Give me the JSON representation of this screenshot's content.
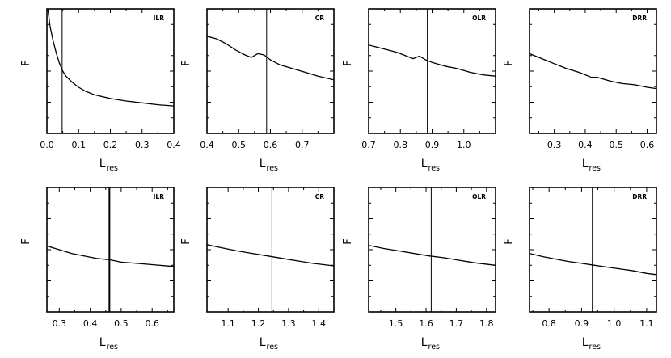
{
  "figure": {
    "background": "#ffffff",
    "line_color": "#000000"
  },
  "chart_data": [
    {
      "type": "line",
      "resonance": "ILR",
      "ylabel": "F",
      "xlabel": "L",
      "xlabel_subscript": "res",
      "xlim": [
        0.0,
        0.4
      ],
      "ylim": [
        0,
        1
      ],
      "xticks": [
        0.0,
        0.1,
        0.2,
        0.3,
        0.4
      ],
      "xtick_labels": [
        "0.0",
        "0.1",
        "0.2",
        "0.3",
        "0.4"
      ],
      "marker_x": 0.048,
      "series": [
        {
          "x": [
            0.003,
            0.01,
            0.02,
            0.03,
            0.04,
            0.05,
            0.06,
            0.08,
            0.1,
            0.12,
            0.15,
            0.2,
            0.25,
            0.3,
            0.35,
            0.4
          ],
          "y": [
            1.0,
            0.86,
            0.74,
            0.64,
            0.56,
            0.5,
            0.46,
            0.41,
            0.37,
            0.34,
            0.31,
            0.28,
            0.26,
            0.245,
            0.23,
            0.22
          ]
        }
      ]
    },
    {
      "type": "line",
      "resonance": "CR",
      "ylabel": "F",
      "xlabel": "L",
      "xlabel_subscript": "res",
      "xlim": [
        0.4,
        0.8
      ],
      "ylim": [
        0,
        1
      ],
      "xticks": [
        0.4,
        0.5,
        0.6,
        0.7
      ],
      "xtick_labels": [
        "0.4",
        "0.5",
        "0.6",
        "0.7"
      ],
      "marker_x": 0.588,
      "series": [
        {
          "x": [
            0.4,
            0.43,
            0.46,
            0.49,
            0.52,
            0.54,
            0.56,
            0.58,
            0.6,
            0.63,
            0.67,
            0.71,
            0.75,
            0.8
          ],
          "y": [
            0.78,
            0.76,
            0.72,
            0.67,
            0.63,
            0.61,
            0.64,
            0.63,
            0.59,
            0.55,
            0.52,
            0.49,
            0.46,
            0.43
          ]
        }
      ]
    },
    {
      "type": "line",
      "resonance": "OLR",
      "ylabel": "F",
      "xlabel": "L",
      "xlabel_subscript": "res",
      "xlim": [
        0.7,
        1.1
      ],
      "ylim": [
        0,
        1
      ],
      "xticks": [
        0.7,
        0.8,
        0.9,
        1.0
      ],
      "xtick_labels": [
        "0.7",
        "0.8",
        "0.9",
        "1.0"
      ],
      "marker_x": 0.885,
      "series": [
        {
          "x": [
            0.7,
            0.73,
            0.76,
            0.79,
            0.82,
            0.84,
            0.86,
            0.88,
            0.9,
            0.94,
            0.98,
            1.02,
            1.06,
            1.1
          ],
          "y": [
            0.71,
            0.69,
            0.67,
            0.65,
            0.62,
            0.6,
            0.62,
            0.59,
            0.57,
            0.54,
            0.52,
            0.49,
            0.47,
            0.46
          ]
        }
      ]
    },
    {
      "type": "line",
      "resonance": "DRR",
      "ylabel": "F",
      "xlabel": "L",
      "xlabel_subscript": "res",
      "xlim": [
        0.22,
        0.63
      ],
      "ylim": [
        0,
        1
      ],
      "xticks": [
        0.3,
        0.4,
        0.5,
        0.6
      ],
      "xtick_labels": [
        "0.3",
        "0.4",
        "0.5",
        "0.6"
      ],
      "marker_x": 0.425,
      "series": [
        {
          "x": [
            0.22,
            0.26,
            0.3,
            0.34,
            0.38,
            0.42,
            0.44,
            0.48,
            0.52,
            0.56,
            0.6,
            0.63
          ],
          "y": [
            0.64,
            0.6,
            0.56,
            0.52,
            0.49,
            0.45,
            0.45,
            0.42,
            0.4,
            0.39,
            0.37,
            0.36
          ]
        }
      ]
    },
    {
      "type": "line",
      "resonance": "ILR",
      "ylabel": "F",
      "xlabel": "L",
      "xlabel_subscript": "res",
      "xlim": [
        0.26,
        0.67
      ],
      "ylim": [
        0,
        1
      ],
      "xticks": [
        0.3,
        0.4,
        0.5,
        0.6
      ],
      "xtick_labels": [
        "0.3",
        "0.4",
        "0.5",
        "0.6"
      ],
      "marker_x": 0.462,
      "series": [
        {
          "x": [
            0.26,
            0.3,
            0.34,
            0.38,
            0.42,
            0.46,
            0.5,
            0.55,
            0.6,
            0.67
          ],
          "y": [
            0.53,
            0.5,
            0.47,
            0.45,
            0.43,
            0.42,
            0.4,
            0.39,
            0.38,
            0.365
          ]
        }
      ]
    },
    {
      "type": "line",
      "resonance": "CR",
      "ylabel": "F",
      "xlabel": "L",
      "xlabel_subscript": "res",
      "xlim": [
        1.03,
        1.45
      ],
      "ylim": [
        0,
        1
      ],
      "xticks": [
        1.1,
        1.2,
        1.3,
        1.4
      ],
      "xtick_labels": [
        "1.1",
        "1.2",
        "1.3",
        "1.4"
      ],
      "marker_x": 1.245,
      "series": [
        {
          "x": [
            1.03,
            1.08,
            1.13,
            1.18,
            1.23,
            1.28,
            1.33,
            1.38,
            1.45
          ],
          "y": [
            0.54,
            0.515,
            0.49,
            0.47,
            0.45,
            0.43,
            0.41,
            0.39,
            0.37
          ]
        }
      ]
    },
    {
      "type": "line",
      "resonance": "OLR",
      "ylabel": "F",
      "xlabel": "L",
      "xlabel_subscript": "res",
      "xlim": [
        1.41,
        1.83
      ],
      "ylim": [
        0,
        1
      ],
      "xticks": [
        1.5,
        1.6,
        1.7,
        1.8
      ],
      "xtick_labels": [
        "1.5",
        "1.6",
        "1.7",
        "1.8"
      ],
      "marker_x": 1.617,
      "series": [
        {
          "x": [
            1.41,
            1.46,
            1.51,
            1.56,
            1.61,
            1.66,
            1.71,
            1.76,
            1.83
          ],
          "y": [
            0.535,
            0.51,
            0.49,
            0.47,
            0.45,
            0.435,
            0.415,
            0.395,
            0.375
          ]
        }
      ]
    },
    {
      "type": "line",
      "resonance": "DRR",
      "ylabel": "F",
      "xlabel": "L",
      "xlabel_subscript": "res",
      "xlim": [
        0.74,
        1.13
      ],
      "ylim": [
        0,
        1
      ],
      "xticks": [
        0.8,
        0.9,
        1.0,
        1.1
      ],
      "xtick_labels": [
        "0.8",
        "0.9",
        "1.0",
        "1.1"
      ],
      "marker_x": 0.933,
      "series": [
        {
          "x": [
            0.74,
            0.78,
            0.82,
            0.86,
            0.9,
            0.94,
            0.98,
            1.02,
            1.06,
            1.1,
            1.13
          ],
          "y": [
            0.47,
            0.445,
            0.425,
            0.405,
            0.39,
            0.375,
            0.36,
            0.345,
            0.33,
            0.31,
            0.3
          ]
        }
      ]
    }
  ]
}
